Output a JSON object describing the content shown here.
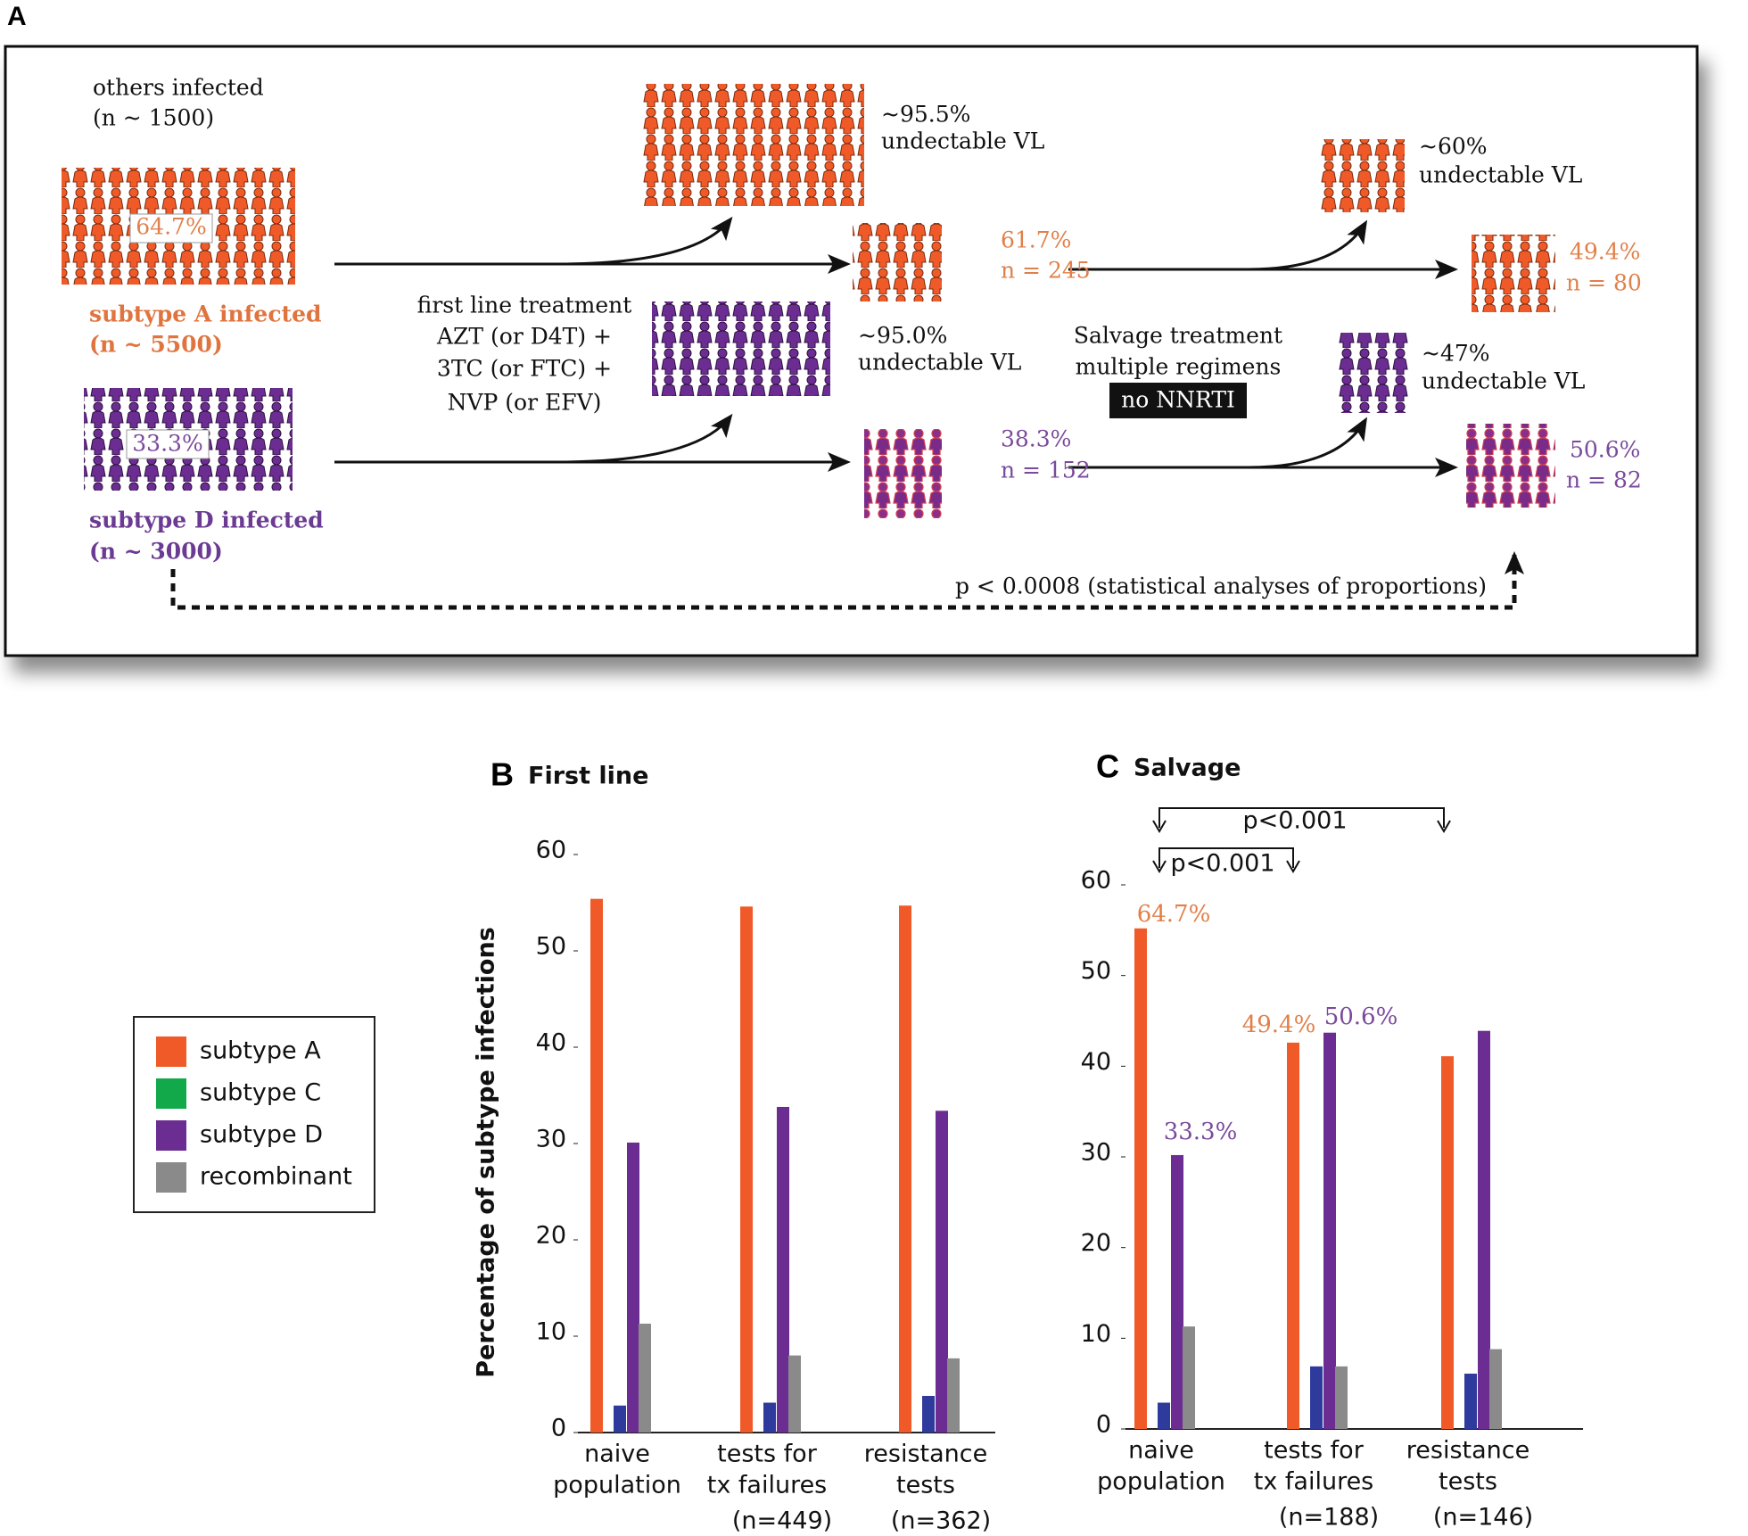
{
  "panel_a": {
    "label": "A",
    "others": [
      "others infected",
      "(n ~ 1500)"
    ],
    "subtype_a": {
      "percent": "64.7%",
      "label": [
        "subtype A infected",
        "(n ~ 5500)"
      ]
    },
    "subtype_d": {
      "percent": "33.3%",
      "label": [
        "subtype D infected",
        "(n ~ 3000)"
      ]
    },
    "first_line": [
      "first line treatment",
      "AZT (or D4T) +",
      "3TC (or FTC) +",
      "NVP (or EFV)"
    ],
    "a_first_undetectable": [
      "~95.5%",
      "undectable VL"
    ],
    "d_first_undetectable": [
      "~95.0%",
      "undectable VL"
    ],
    "a_first_fail": [
      "61.7%",
      "n = 245"
    ],
    "d_first_fail": [
      "38.3%",
      "n = 152"
    ],
    "salvage": [
      "Salvage treatment",
      "multiple regimens",
      "no NNRTI"
    ],
    "a_salvage_undetectable": [
      "~60%",
      "undectable VL"
    ],
    "d_salvage_undetectable": [
      "~47%",
      "undectable VL"
    ],
    "a_salvage_fail": [
      "49.4%",
      "n = 80"
    ],
    "d_salvage_fail": [
      "50.6%",
      "n = 82"
    ],
    "p_value": "p < 0.0008 (statistical analyses of proportions)"
  },
  "chart_data": [
    {
      "type": "bar",
      "panel_label": "B",
      "title": "First line",
      "y_label": "Percentage of subtype infections",
      "categories": [
        [
          "naive",
          "population"
        ],
        [
          "tests for",
          "tx failures"
        ],
        [
          "resistance",
          "tests"
        ]
      ],
      "category_notes": [
        null,
        "(n=449)",
        "(n=362)"
      ],
      "series": [
        {
          "name": "subtype A",
          "color": "#f05a28",
          "legend_color": "#f05a28",
          "values": [
            55.4,
            54.6,
            54.7
          ]
        },
        {
          "name": "subtype C",
          "color": "#2e3a9c",
          "legend_color": "#12a94a",
          "values": [
            2.8,
            3.1,
            3.8
          ]
        },
        {
          "name": "subtype D",
          "color": "#6b2d91",
          "legend_color": "#6b2d91",
          "values": [
            30.1,
            33.8,
            33.4
          ]
        },
        {
          "name": "recombinant",
          "color": "#8a8a8a",
          "legend_color": "#8a8a8a",
          "values": [
            11.3,
            8.0,
            7.7
          ]
        }
      ],
      "ylim": [
        0,
        60
      ],
      "yticks": [
        0,
        10,
        20,
        30,
        40,
        50,
        60
      ],
      "legend": "left"
    },
    {
      "type": "bar",
      "panel_label": "C",
      "title": "Salvage",
      "categories": [
        [
          "naive",
          "population"
        ],
        [
          "tests for",
          "tx failures"
        ],
        [
          "resistance",
          "tests"
        ]
      ],
      "category_notes": [
        null,
        "(n=188)",
        "(n=146)"
      ],
      "series": [
        {
          "name": "subtype A",
          "color": "#f05a28",
          "values": [
            55.2,
            42.6,
            41.1
          ]
        },
        {
          "name": "subtype C",
          "color": "#2e3a9c",
          "values": [
            2.9,
            6.9,
            6.1
          ]
        },
        {
          "name": "subtype D",
          "color": "#6b2d91",
          "values": [
            30.2,
            43.7,
            43.9
          ]
        },
        {
          "name": "recombinant",
          "color": "#8a8a8a",
          "values": [
            11.3,
            6.9,
            8.8
          ]
        }
      ],
      "ylim": [
        0,
        60
      ],
      "yticks": [
        0,
        10,
        20,
        30,
        40,
        50,
        60
      ],
      "annotations": [
        {
          "text": "64.7%",
          "color": "#e0804a"
        },
        {
          "text": "33.3%",
          "color": "#7a4a9c"
        },
        {
          "text": "49.4%",
          "color": "#e0804a"
        },
        {
          "text": "50.6%",
          "color": "#7a4a9c"
        }
      ],
      "significance": [
        "p<0.001",
        "p<0.001"
      ]
    }
  ]
}
